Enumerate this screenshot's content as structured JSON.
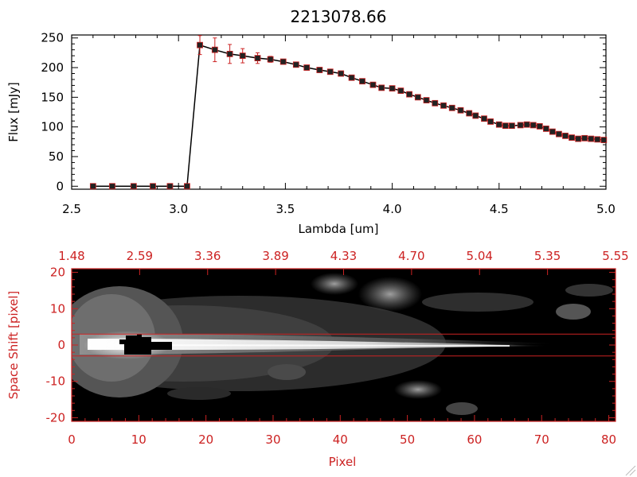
{
  "colors": {
    "axis_top": "#000000",
    "axis_bottom": "#cc2222",
    "marker_fill": "#222222",
    "errorbar": "#cc2222",
    "image_bg": "#000000",
    "band_line": "#cc2222"
  },
  "chart_data": [
    {
      "type": "line",
      "title": "2213078.66",
      "xlabel": "Lambda [um]",
      "ylabel": "Flux [mJy]",
      "xlim": [
        2.5,
        5.0
      ],
      "ylim": [
        -5,
        255
      ],
      "xticks": [
        "2.5",
        "3.0",
        "3.5",
        "4.0",
        "4.5",
        "5.0"
      ],
      "yticks": [
        "0",
        "50",
        "100",
        "150",
        "200",
        "250"
      ],
      "marker": "square",
      "x": [
        2.6,
        2.69,
        2.79,
        2.88,
        2.96,
        3.04,
        3.1,
        3.17,
        3.24,
        3.3,
        3.37,
        3.43,
        3.49,
        3.55,
        3.6,
        3.66,
        3.71,
        3.76,
        3.81,
        3.86,
        3.91,
        3.95,
        4.0,
        4.04,
        4.08,
        4.12,
        4.16,
        4.2,
        4.24,
        4.28,
        4.32,
        4.36,
        4.39,
        4.43,
        4.46,
        4.5,
        4.53,
        4.56,
        4.6,
        4.63,
        4.66,
        4.69,
        4.72,
        4.75,
        4.78,
        4.81,
        4.84,
        4.87,
        4.9,
        4.93,
        4.96,
        4.99
      ],
      "y": [
        0,
        0,
        0,
        0,
        0,
        0,
        238,
        230,
        223,
        220,
        216,
        214,
        210,
        205,
        200,
        196,
        193,
        190,
        183,
        177,
        171,
        166,
        165,
        161,
        155,
        150,
        145,
        140,
        136,
        132,
        128,
        123,
        119,
        114,
        109,
        104,
        102,
        102,
        103,
        104,
        103,
        101,
        97,
        92,
        88,
        85,
        82,
        80,
        81,
        80,
        79,
        78
      ],
      "yerr": [
        0,
        0,
        0,
        0,
        0,
        0,
        16,
        20,
        16,
        12,
        9,
        5,
        4,
        3,
        3,
        3,
        3,
        3,
        3,
        3,
        3,
        3,
        3,
        3,
        3,
        3,
        3,
        3,
        3,
        3,
        3,
        3,
        3,
        3,
        3,
        3,
        3,
        3,
        3,
        3,
        3,
        3,
        3,
        3,
        3,
        3,
        3,
        3,
        3,
        3,
        3,
        3
      ]
    },
    {
      "type": "heatmap",
      "xlabel": "Pixel",
      "ylabel": "Space Shift [pixel]",
      "xlim": [
        0,
        81
      ],
      "ylim": [
        -21,
        21
      ],
      "xticks": [
        "0",
        "10",
        "20",
        "30",
        "40",
        "50",
        "60",
        "70",
        "80"
      ],
      "yticks": [
        "20",
        "10",
        "0",
        "-10",
        "-20"
      ],
      "top_axis_label_values": [
        "1.48",
        "2.59",
        "3.36",
        "3.89",
        "4.33",
        "4.70",
        "5.04",
        "5.35",
        "5.55"
      ],
      "extraction_band": [
        -3,
        3
      ],
      "colormap": "grayscale",
      "saturated_region": "black patch near pixel 8-15, shift 0-2"
    }
  ]
}
